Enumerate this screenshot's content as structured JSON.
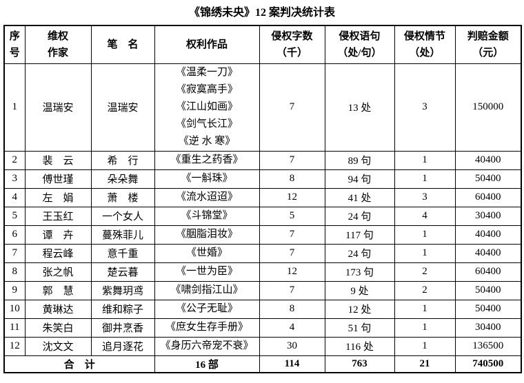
{
  "page": {
    "title": "《锦绣未央》12 案判决统计表"
  },
  "table": {
    "headers": [
      {
        "id": "serial",
        "lines": [
          "序",
          "号"
        ]
      },
      {
        "id": "author",
        "lines": [
          "维权",
          "作家"
        ]
      },
      {
        "id": "pen-name",
        "lines": [
          "笔　名"
        ]
      },
      {
        "id": "works",
        "lines": [
          "权利作品"
        ]
      },
      {
        "id": "word-count",
        "lines": [
          "侵权字数",
          "（千）"
        ]
      },
      {
        "id": "sentences",
        "lines": [
          "侵权语句",
          "（处/句）"
        ]
      },
      {
        "id": "plots",
        "lines": [
          "侵权情节",
          "（处）"
        ]
      },
      {
        "id": "amount",
        "lines": [
          "判赔金额",
          "（元）"
        ]
      }
    ],
    "rows": [
      {
        "no": "1",
        "author": "温瑞安",
        "pen_name": "温瑞安",
        "works": [
          "《温柔一刀》",
          "《寂寞高手》",
          "《江山如画》",
          "《剑气长江》",
          "《逆 水 寒》"
        ],
        "words": "7",
        "sentences": "13 处",
        "plots": "3",
        "amount": "150000"
      },
      {
        "no": "2",
        "author": "裴　云",
        "pen_name": "希　行",
        "works": [
          "《重生之药香》"
        ],
        "words": "7",
        "sentences": "89 句",
        "plots": "1",
        "amount": "40400"
      },
      {
        "no": "3",
        "author": "傅世瑾",
        "pen_name": "朵朵舞",
        "works": [
          "《一斛珠》"
        ],
        "words": "8",
        "sentences": "94 句",
        "plots": "1",
        "amount": "50400"
      },
      {
        "no": "4",
        "author": "左　娟",
        "pen_name": "萧　楼",
        "works": [
          "《流水迢迢》"
        ],
        "words": "12",
        "sentences": "41 处",
        "plots": "3",
        "amount": "60400"
      },
      {
        "no": "5",
        "author": "王玉红",
        "pen_name": "一个女人",
        "works": [
          "《斗锦堂》"
        ],
        "words": "5",
        "sentences": "24 句",
        "plots": "4",
        "amount": "30400"
      },
      {
        "no": "6",
        "author": "谭　卉",
        "pen_name": "蔓殊菲儿",
        "works": [
          "《胭脂泪妆》"
        ],
        "words": "7",
        "sentences": "117 句",
        "plots": "1",
        "amount": "40400"
      },
      {
        "no": "7",
        "author": "程云峰",
        "pen_name": "意千重",
        "works": [
          "《世婚》"
        ],
        "words": "7",
        "sentences": "24 句",
        "plots": "1",
        "amount": "40400"
      },
      {
        "no": "8",
        "author": "张之帆",
        "pen_name": "楚云暮",
        "works": [
          "《一世为臣》"
        ],
        "words": "12",
        "sentences": "173 句",
        "plots": "2",
        "amount": "60400"
      },
      {
        "no": "9",
        "author": "郭　慧",
        "pen_name": "紫舞玥鸢",
        "works": [
          "《啸剑指江山》"
        ],
        "words": "7",
        "sentences": "9 处",
        "plots": "2",
        "amount": "50400"
      },
      {
        "no": "10",
        "author": "黄琳达",
        "pen_name": "维和粽子",
        "works": [
          "《公子无耻》"
        ],
        "words": "8",
        "sentences": "12 处",
        "plots": "1",
        "amount": "50400"
      },
      {
        "no": "11",
        "author": "朱笑白",
        "pen_name": "御井烹香",
        "works": [
          "《庶女生存手册》"
        ],
        "words": "4",
        "sentences": "51 句",
        "plots": "1",
        "amount": "30400"
      },
      {
        "no": "12",
        "author": "沈文文",
        "pen_name": "追月逐花",
        "works": [
          "《身历六帝宠不衰》"
        ],
        "words": "30",
        "sentences": "116 处",
        "plots": "1",
        "amount": "136500"
      }
    ],
    "total": {
      "label": "合　计",
      "works": "16 部",
      "words": "114",
      "sentences": "763",
      "plots": "21",
      "amount": "740500"
    }
  }
}
